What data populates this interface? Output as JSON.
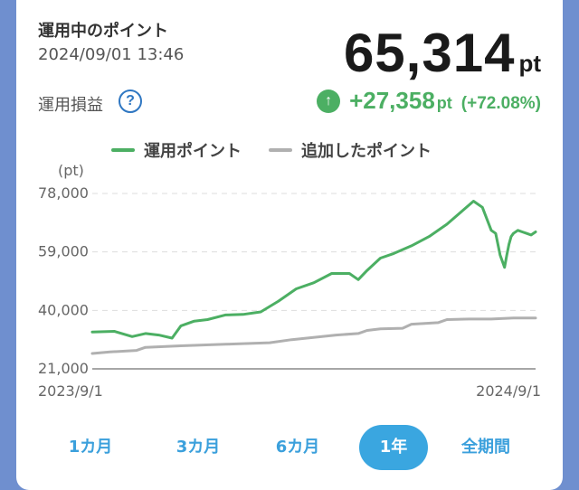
{
  "header": {
    "title": "運用中のポイント",
    "timestamp": "2024/09/01 13:46",
    "total_value": "65,314",
    "total_unit": "pt"
  },
  "profit": {
    "label": "運用損益",
    "help_icon": "?",
    "up_icon": "↑",
    "value": "+27,358",
    "unit": "pt",
    "percent": "(+72.08%)",
    "color": "#4caf63"
  },
  "legend": {
    "operating": "運用ポイント",
    "added": "追加したポイント"
  },
  "chart_data": {
    "type": "line",
    "yunit": "(pt)",
    "ylim": [
      21000,
      78000
    ],
    "yticks": [
      "78,000",
      "59,000",
      "40,000",
      "21,000"
    ],
    "x_start_label": "2023/9/1",
    "x_end_label": "2024/9/1",
    "grid": true,
    "legend_position": "top",
    "series": [
      {
        "name": "運用ポイント",
        "color": "#4caf63",
        "x": [
          0,
          0.05,
          0.09,
          0.12,
          0.15,
          0.18,
          0.2,
          0.23,
          0.26,
          0.3,
          0.34,
          0.38,
          0.42,
          0.46,
          0.5,
          0.54,
          0.58,
          0.6,
          0.62,
          0.65,
          0.68,
          0.72,
          0.76,
          0.8,
          0.84,
          0.86,
          0.88,
          0.9,
          0.91,
          0.92,
          0.93,
          0.935,
          0.94,
          0.945,
          0.95,
          0.96,
          0.97,
          0.98,
          0.99,
          1.0
        ],
        "values": [
          33000,
          33200,
          31500,
          32500,
          32000,
          31000,
          35000,
          36500,
          37000,
          38500,
          38700,
          39500,
          43000,
          47000,
          49000,
          52000,
          52000,
          50000,
          53000,
          57000,
          58500,
          61000,
          64000,
          68000,
          73000,
          75500,
          73500,
          66000,
          65000,
          58000,
          54000,
          58000,
          61500,
          64000,
          65000,
          66000,
          65500,
          65000,
          64500,
          65500
        ]
      },
      {
        "name": "追加したポイント",
        "color": "#b0b0b0",
        "x": [
          0,
          0.04,
          0.1,
          0.12,
          0.2,
          0.3,
          0.4,
          0.45,
          0.55,
          0.6,
          0.62,
          0.65,
          0.7,
          0.72,
          0.78,
          0.8,
          0.85,
          0.9,
          0.95,
          1.0
        ],
        "values": [
          26000,
          26500,
          27000,
          28000,
          28500,
          29000,
          29500,
          30500,
          32000,
          32500,
          33500,
          34000,
          34200,
          35500,
          36000,
          37000,
          37200,
          37200,
          37500,
          37500
        ]
      }
    ]
  },
  "tabs": [
    {
      "label": "1カ月",
      "active": false
    },
    {
      "label": "3カ月",
      "active": false
    },
    {
      "label": "6カ月",
      "active": false
    },
    {
      "label": "1年",
      "active": true
    },
    {
      "label": "全期間",
      "active": false
    }
  ]
}
